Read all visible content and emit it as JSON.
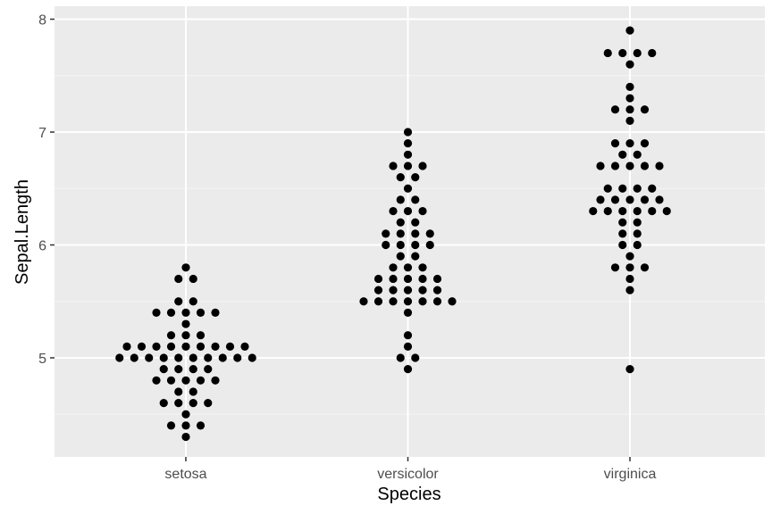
{
  "chart_data": {
    "type": "scatter",
    "subtype": "dotplot",
    "xlabel": "Species",
    "ylabel": "Sepal.Length",
    "categories": [
      "setosa",
      "versicolor",
      "virginica"
    ],
    "ylim": [
      4.2,
      8.1
    ],
    "yticks": [
      5,
      6,
      7,
      8
    ],
    "ytick_labels": [
      "5",
      "6",
      "7",
      "8"
    ],
    "grid": true,
    "colors": {
      "panel_background": "#ebebeb",
      "grid_major": "#ffffff",
      "grid_minor": "#f5f5f5",
      "point": "#000000",
      "tick": "#333333"
    },
    "series": [
      {
        "category": "setosa",
        "values": [
          4.3,
          4.4,
          4.4,
          4.4,
          4.5,
          4.6,
          4.6,
          4.6,
          4.6,
          4.7,
          4.7,
          4.8,
          4.8,
          4.8,
          4.8,
          4.8,
          4.9,
          4.9,
          4.9,
          4.9,
          5.0,
          5.0,
          5.0,
          5.0,
          5.0,
          5.0,
          5.0,
          5.0,
          5.0,
          5.0,
          5.1,
          5.1,
          5.1,
          5.1,
          5.1,
          5.1,
          5.1,
          5.1,
          5.1,
          5.2,
          5.2,
          5.2,
          5.3,
          5.4,
          5.4,
          5.4,
          5.4,
          5.4,
          5.5,
          5.5,
          5.7,
          5.7,
          5.8
        ]
      },
      {
        "category": "versicolor",
        "values": [
          4.9,
          5.0,
          5.0,
          5.1,
          5.2,
          5.4,
          5.5,
          5.5,
          5.5,
          5.5,
          5.5,
          5.5,
          5.5,
          5.6,
          5.6,
          5.6,
          5.6,
          5.6,
          5.7,
          5.7,
          5.7,
          5.7,
          5.7,
          5.8,
          5.8,
          5.8,
          5.9,
          5.9,
          6.0,
          6.0,
          6.0,
          6.0,
          6.1,
          6.1,
          6.1,
          6.1,
          6.2,
          6.2,
          6.3,
          6.3,
          6.3,
          6.4,
          6.4,
          6.5,
          6.6,
          6.6,
          6.7,
          6.7,
          6.7,
          6.8,
          6.9,
          7.0
        ]
      },
      {
        "category": "virginica",
        "values": [
          4.9,
          5.6,
          5.7,
          5.8,
          5.8,
          5.8,
          5.9,
          6.0,
          6.0,
          6.1,
          6.1,
          6.2,
          6.2,
          6.3,
          6.3,
          6.3,
          6.3,
          6.3,
          6.3,
          6.4,
          6.4,
          6.4,
          6.4,
          6.4,
          6.5,
          6.5,
          6.5,
          6.5,
          6.7,
          6.7,
          6.7,
          6.7,
          6.7,
          6.8,
          6.8,
          6.9,
          6.9,
          6.9,
          7.1,
          7.2,
          7.2,
          7.2,
          7.3,
          7.4,
          7.6,
          7.7,
          7.7,
          7.7,
          7.7,
          7.9
        ]
      }
    ]
  }
}
